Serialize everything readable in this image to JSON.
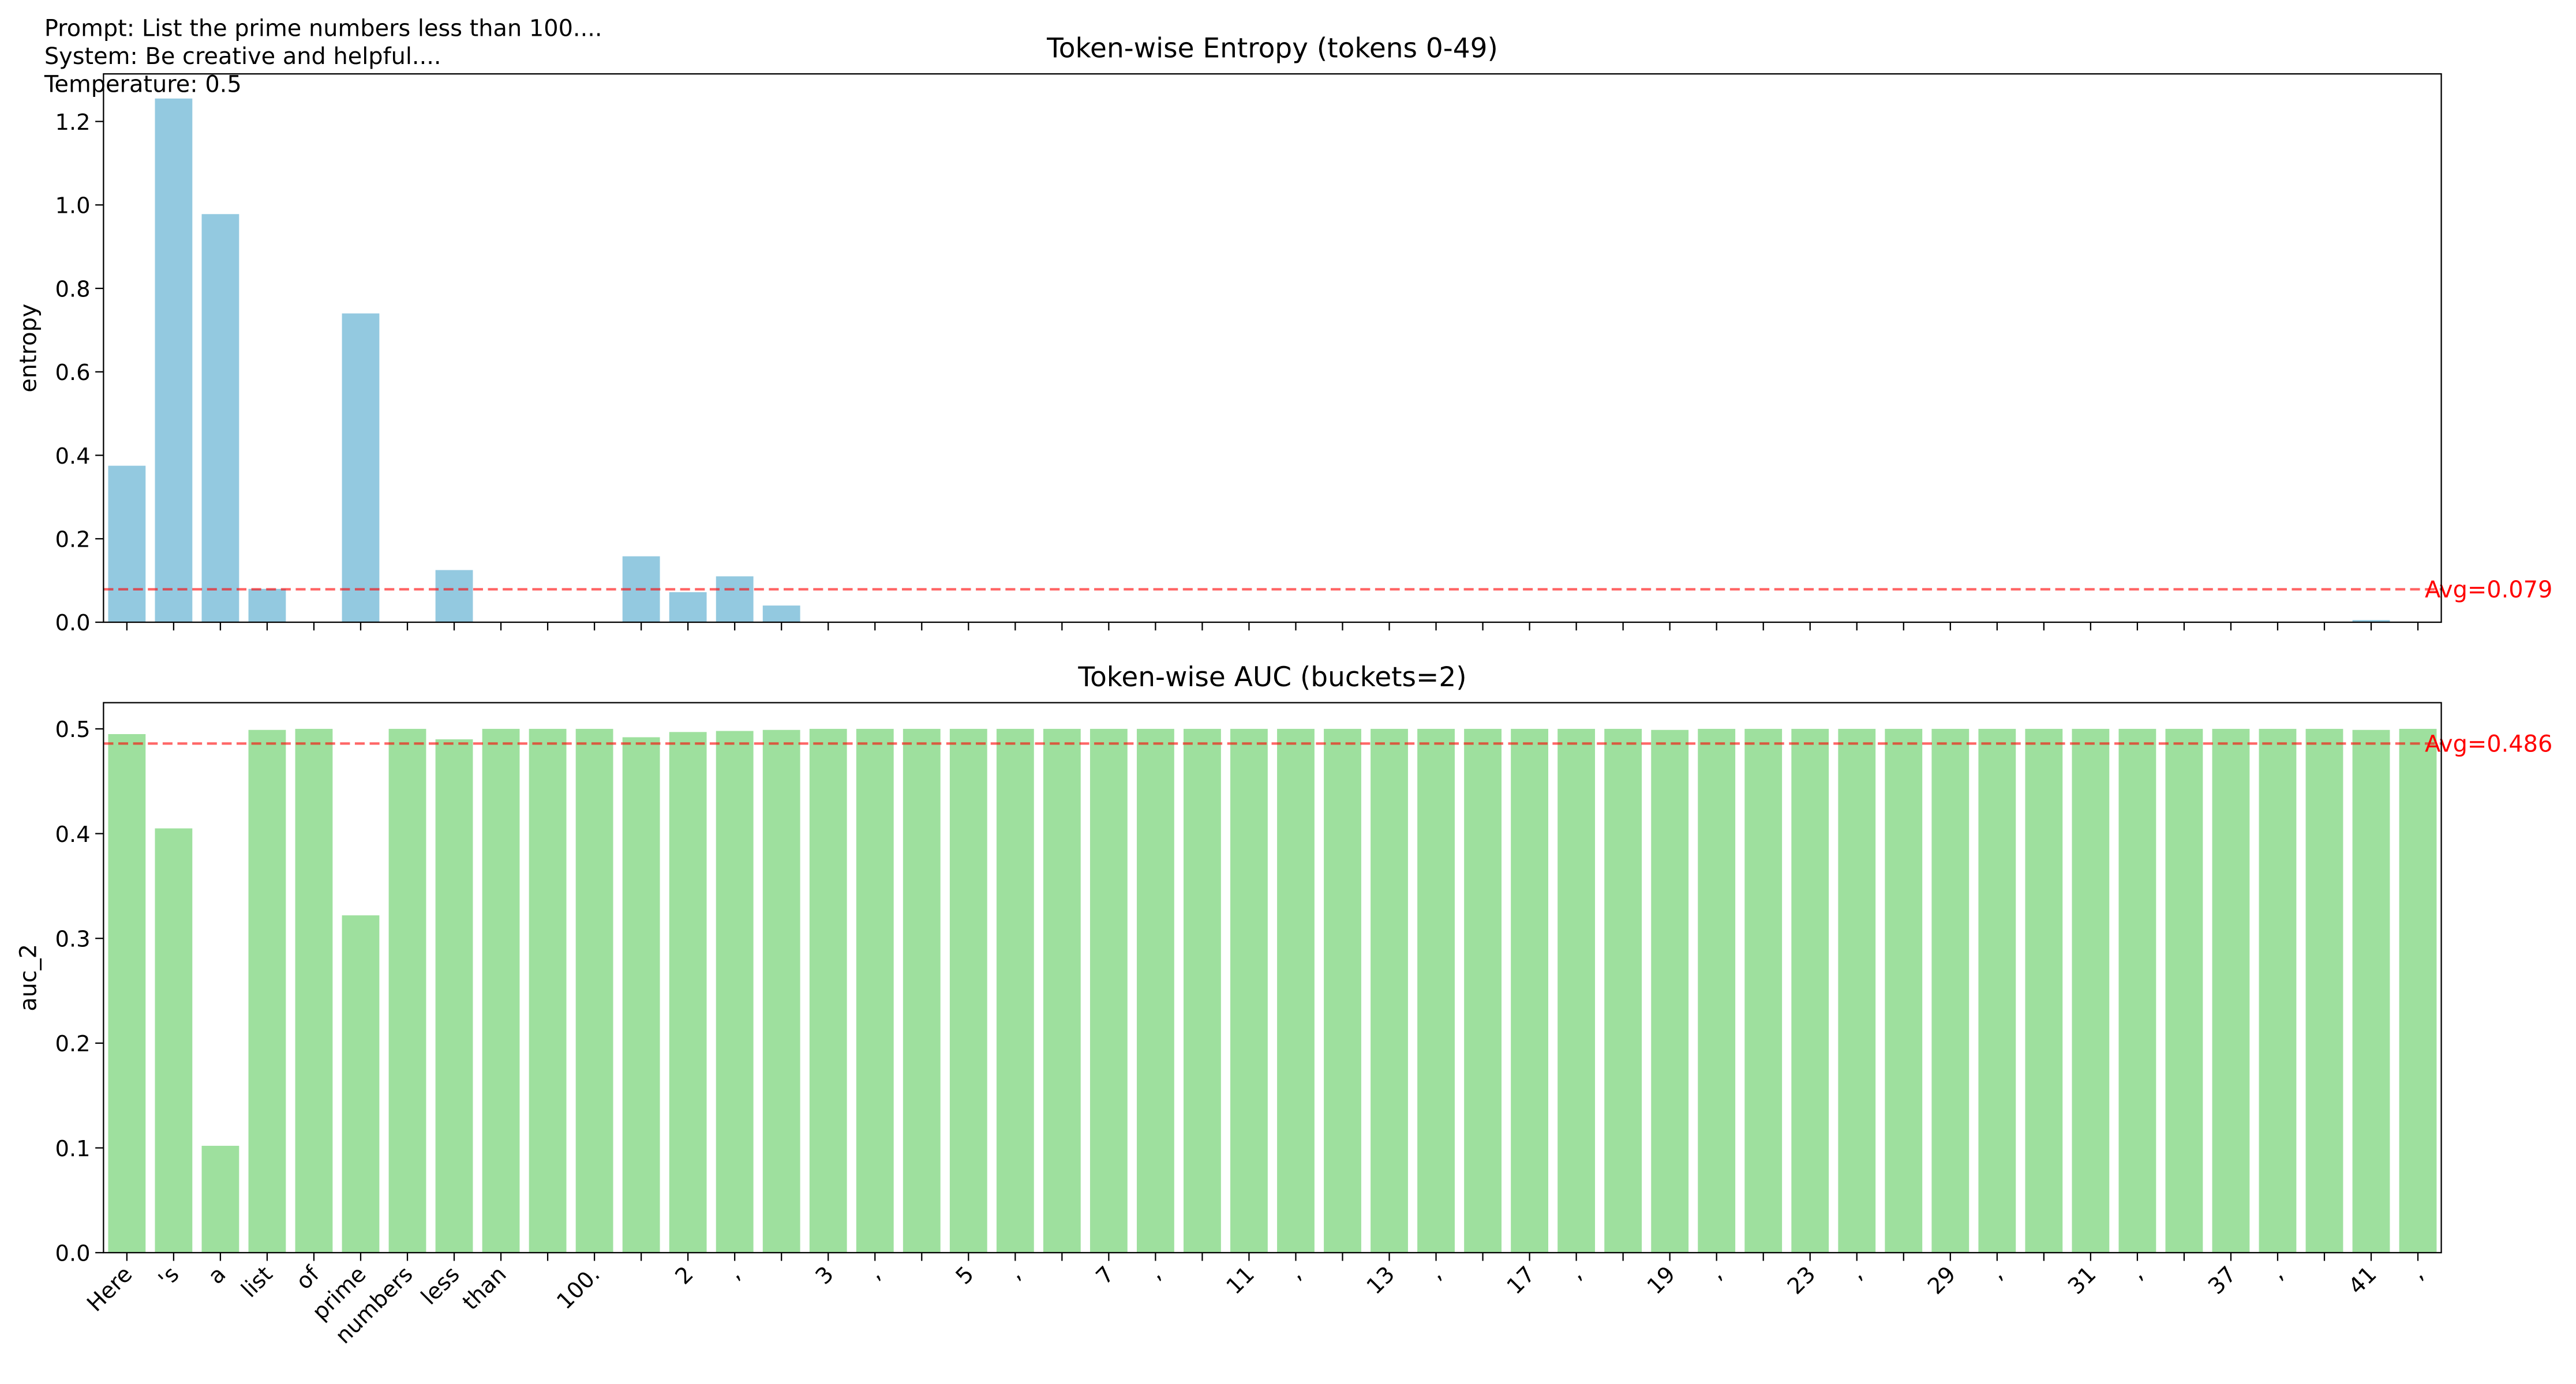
{
  "header": {
    "lines": [
      "Prompt: List the prime numbers less than 100....",
      "System: Be creative and helpful....",
      "Temperature: 0.5"
    ]
  },
  "chart_data": [
    {
      "type": "bar",
      "title": "Token-wise Entropy (tokens 0-49)",
      "y_label": "entropy",
      "color": "#93c9e0",
      "values": [
        0.375,
        1.255,
        0.978,
        0.08,
        0,
        0.74,
        0,
        0.125,
        0,
        0,
        0,
        0.158,
        0.072,
        0.11,
        0.04,
        0,
        0,
        0,
        0,
        0,
        0,
        0,
        0,
        0,
        0,
        0,
        0,
        0,
        0,
        0,
        0,
        0,
        0,
        0,
        0,
        0,
        0,
        0,
        0,
        0,
        0,
        0,
        0,
        0,
        0,
        0,
        0,
        0,
        0.005,
        0
      ],
      "ylim": [
        0,
        1.314
      ],
      "yticks": [
        {
          "value": 0,
          "label": "0.0"
        },
        0.2,
        0.4,
        0.6,
        0.8,
        {
          "value": 1,
          "label": "1.0"
        },
        1.2
      ],
      "reference_line": {
        "value": 0.079,
        "label": "Avg=0.079",
        "color": "#ff0000"
      }
    },
    {
      "type": "bar",
      "title": "Token-wise AUC (buckets=2)",
      "y_label": "auc_2",
      "color": "#9ee09e",
      "categories": [
        "Here",
        "'s",
        "a",
        "list",
        "of",
        "prime",
        "numbers",
        "less",
        "than",
        null,
        "100.",
        null,
        "2",
        ",",
        null,
        "3",
        ",",
        null,
        "5",
        ",",
        null,
        "7",
        ",",
        null,
        "11",
        ",",
        null,
        "13",
        ",",
        null,
        "17",
        ",",
        null,
        "19",
        ",",
        null,
        "23",
        ",",
        null,
        "29",
        ",",
        null,
        "31",
        ",",
        null,
        "37",
        ",",
        null,
        "41",
        ","
      ],
      "values": [
        0.495,
        0.405,
        0.102,
        0.499,
        0.5,
        0.322,
        0.5,
        0.49,
        0.5,
        0.5,
        0.5,
        0.492,
        0.497,
        0.498,
        0.499,
        0.5,
        0.5,
        0.5,
        0.5,
        0.5,
        0.5,
        0.5,
        0.5,
        0.5,
        0.5,
        0.5,
        0.5,
        0.5,
        0.5,
        0.5,
        0.5,
        0.5,
        0.5,
        0.499,
        0.5,
        0.5,
        0.5,
        0.5,
        0.5,
        0.5,
        0.5,
        0.5,
        0.5,
        0.5,
        0.5,
        0.5,
        0.5,
        0.5,
        0.499,
        0.5
      ],
      "ylim": [
        0,
        0.525
      ],
      "yticks": [
        {
          "value": 0,
          "label": "0.0"
        },
        0.1,
        0.2,
        0.3,
        0.4,
        0.5
      ],
      "reference_line": {
        "value": 0.486,
        "label": "Avg=0.486",
        "color": "#ff0000"
      }
    }
  ]
}
